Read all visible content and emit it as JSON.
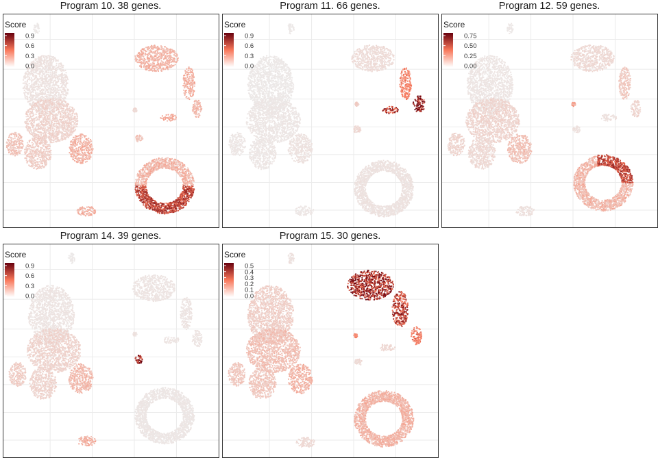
{
  "chart_data": [
    {
      "type": "scatter",
      "title": "Program 10. 38 genes.",
      "legend": {
        "title": "Score",
        "ticks": [
          "0.9",
          "0.6",
          "0.3",
          "0.0"
        ],
        "max": 1.0,
        "placement": "top-left"
      },
      "colors": {
        "low": "#ececec",
        "mid": "#f8775a",
        "high": "#67000d"
      },
      "xlim": [
        0,
        8
      ],
      "ylim": [
        0,
        7.2
      ],
      "grid": true,
      "clusters": [
        {
          "name": "top-small",
          "x": 1.25,
          "y": 6.7,
          "rx": 0.12,
          "ry": 0.18,
          "score": 0.02
        },
        {
          "name": "main-upper",
          "x": 1.6,
          "y": 4.8,
          "rx": 0.85,
          "ry": 1.0,
          "score": 0.05
        },
        {
          "name": "main-mid",
          "x": 1.8,
          "y": 3.6,
          "rx": 1.0,
          "ry": 0.75,
          "score": 0.12
        },
        {
          "name": "left-arm",
          "x": 0.45,
          "y": 2.8,
          "rx": 0.32,
          "ry": 0.4,
          "score": 0.2
        },
        {
          "name": "lower-left",
          "x": 1.3,
          "y": 2.5,
          "rx": 0.5,
          "ry": 0.55,
          "score": 0.15
        },
        {
          "name": "lower-right",
          "x": 2.9,
          "y": 2.65,
          "rx": 0.45,
          "ry": 0.5,
          "score": 0.28
        },
        {
          "name": "tr-blob",
          "x": 5.7,
          "y": 5.7,
          "rx": 0.8,
          "ry": 0.45,
          "score": 0.28
        },
        {
          "name": "tr-stem",
          "x": 6.9,
          "y": 4.85,
          "rx": 0.22,
          "ry": 0.55,
          "score": 0.3
        },
        {
          "name": "tr-tip",
          "x": 7.2,
          "y": 4.0,
          "rx": 0.18,
          "ry": 0.3,
          "score": 0.25
        },
        {
          "name": "mid-tiny",
          "x": 4.9,
          "y": 3.95,
          "rx": 0.07,
          "ry": 0.07,
          "score": 0.1
        },
        {
          "name": "mid-small",
          "x": 6.15,
          "y": 3.7,
          "rx": 0.3,
          "ry": 0.12,
          "score": 0.3
        },
        {
          "name": "left-small",
          "x": 5.05,
          "y": 3.0,
          "rx": 0.14,
          "ry": 0.12,
          "score": 0.2
        },
        {
          "name": "ring",
          "x": 6.0,
          "y": 1.4,
          "rx": 1.1,
          "ry": 0.95,
          "score": 0.75,
          "ring": true,
          "hot_side": "bottom"
        },
        {
          "name": "bottom-small",
          "x": 3.1,
          "y": 0.55,
          "rx": 0.35,
          "ry": 0.17,
          "score": 0.3
        }
      ]
    },
    {
      "type": "scatter",
      "title": "Program 11. 66 genes.",
      "legend": {
        "title": "Score",
        "ticks": [
          "0.9",
          "0.6",
          "0.3",
          "0.0"
        ],
        "max": 1.0,
        "placement": "top-left"
      },
      "colors": {
        "low": "#ececec",
        "mid": "#f8775a",
        "high": "#67000d"
      },
      "xlim": [
        0,
        8
      ],
      "ylim": [
        0,
        7.2
      ],
      "grid": true,
      "clusters": [
        {
          "name": "top-small",
          "x": 2.55,
          "y": 6.7,
          "rx": 0.12,
          "ry": 0.18,
          "score": 0.02
        },
        {
          "name": "main-upper",
          "x": 1.8,
          "y": 4.8,
          "rx": 0.85,
          "ry": 1.0,
          "score": 0.02
        },
        {
          "name": "main-mid",
          "x": 1.9,
          "y": 3.6,
          "rx": 1.0,
          "ry": 0.75,
          "score": 0.03
        },
        {
          "name": "left-arm",
          "x": 0.55,
          "y": 2.8,
          "rx": 0.32,
          "ry": 0.4,
          "score": 0.03
        },
        {
          "name": "lower-left",
          "x": 1.5,
          "y": 2.5,
          "rx": 0.5,
          "ry": 0.55,
          "score": 0.03
        },
        {
          "name": "lower-right",
          "x": 2.9,
          "y": 2.65,
          "rx": 0.45,
          "ry": 0.5,
          "score": 0.05
        },
        {
          "name": "tr-blob",
          "x": 5.6,
          "y": 5.7,
          "rx": 0.8,
          "ry": 0.45,
          "score": 0.08
        },
        {
          "name": "tr-stem",
          "x": 6.8,
          "y": 4.85,
          "rx": 0.22,
          "ry": 0.55,
          "score": 0.5
        },
        {
          "name": "tr-tip",
          "x": 7.3,
          "y": 4.15,
          "rx": 0.22,
          "ry": 0.28,
          "score": 0.95
        },
        {
          "name": "mid-tiny",
          "x": 5.0,
          "y": 4.15,
          "rx": 0.07,
          "ry": 0.07,
          "score": 0.15
        },
        {
          "name": "mid-small",
          "x": 6.25,
          "y": 3.95,
          "rx": 0.3,
          "ry": 0.12,
          "score": 0.85
        },
        {
          "name": "left-small",
          "x": 5.0,
          "y": 3.3,
          "rx": 0.14,
          "ry": 0.12,
          "score": 0.1
        },
        {
          "name": "ring",
          "x": 6.0,
          "y": 1.3,
          "rx": 1.1,
          "ry": 0.95,
          "score": 0.05,
          "ring": true
        },
        {
          "name": "bottom-small",
          "x": 3.05,
          "y": 0.55,
          "rx": 0.35,
          "ry": 0.17,
          "score": 0.03
        }
      ]
    },
    {
      "type": "scatter",
      "title": "Program 12. 59 genes.",
      "legend": {
        "title": "Score",
        "ticks": [
          "0.75",
          "0.50",
          "0.25",
          "0.00"
        ],
        "max": 0.85,
        "placement": "top-left"
      },
      "colors": {
        "low": "#ececec",
        "mid": "#f8775a",
        "high": "#67000d"
      },
      "xlim": [
        0,
        8
      ],
      "ylim": [
        0,
        7.2
      ],
      "grid": true,
      "clusters": [
        {
          "name": "top-small",
          "x": 2.55,
          "y": 6.7,
          "rx": 0.12,
          "ry": 0.18,
          "score": 0.02
        },
        {
          "name": "main-upper",
          "x": 1.8,
          "y": 4.8,
          "rx": 0.85,
          "ry": 1.0,
          "score": 0.03
        },
        {
          "name": "main-mid",
          "x": 1.9,
          "y": 3.6,
          "rx": 1.0,
          "ry": 0.75,
          "score": 0.1
        },
        {
          "name": "left-arm",
          "x": 0.55,
          "y": 2.8,
          "rx": 0.32,
          "ry": 0.4,
          "score": 0.1
        },
        {
          "name": "lower-left",
          "x": 1.5,
          "y": 2.5,
          "rx": 0.5,
          "ry": 0.55,
          "score": 0.08
        },
        {
          "name": "lower-right",
          "x": 2.9,
          "y": 2.65,
          "rx": 0.45,
          "ry": 0.5,
          "score": 0.18
        },
        {
          "name": "tr-blob",
          "x": 5.6,
          "y": 5.7,
          "rx": 0.8,
          "ry": 0.45,
          "score": 0.08
        },
        {
          "name": "tr-stem",
          "x": 6.8,
          "y": 4.85,
          "rx": 0.22,
          "ry": 0.55,
          "score": 0.15
        },
        {
          "name": "tr-tip",
          "x": 7.2,
          "y": 4.0,
          "rx": 0.18,
          "ry": 0.3,
          "score": 0.1
        },
        {
          "name": "mid-tiny",
          "x": 4.9,
          "y": 4.15,
          "rx": 0.07,
          "ry": 0.07,
          "score": 0.3
        },
        {
          "name": "mid-small",
          "x": 6.2,
          "y": 3.7,
          "rx": 0.3,
          "ry": 0.12,
          "score": 0.05
        },
        {
          "name": "left-small",
          "x": 5.0,
          "y": 3.3,
          "rx": 0.14,
          "ry": 0.12,
          "score": 0.05
        },
        {
          "name": "ring",
          "x": 6.0,
          "y": 1.5,
          "rx": 1.1,
          "ry": 0.95,
          "score": 0.55,
          "ring": true,
          "hot_side": "top-right"
        },
        {
          "name": "bottom-small",
          "x": 3.1,
          "y": 0.55,
          "rx": 0.35,
          "ry": 0.17,
          "score": 0.05
        }
      ]
    },
    {
      "type": "scatter",
      "title": "Program 14. 39 genes.",
      "legend": {
        "title": "Score",
        "ticks": [
          "0.9",
          "0.6",
          "0.3",
          "0.0"
        ],
        "max": 1.0,
        "placement": "top-left"
      },
      "colors": {
        "low": "#ececec",
        "mid": "#f8775a",
        "high": "#67000d"
      },
      "xlim": [
        0,
        8
      ],
      "ylim": [
        0,
        7.2
      ],
      "grid": true,
      "clusters": [
        {
          "name": "top-small",
          "x": 2.55,
          "y": 6.7,
          "rx": 0.12,
          "ry": 0.18,
          "score": 0.02
        },
        {
          "name": "main-upper",
          "x": 1.8,
          "y": 4.8,
          "rx": 0.85,
          "ry": 1.0,
          "score": 0.04
        },
        {
          "name": "main-mid",
          "x": 1.9,
          "y": 3.6,
          "rx": 1.0,
          "ry": 0.75,
          "score": 0.12
        },
        {
          "name": "left-arm",
          "x": 0.55,
          "y": 2.8,
          "rx": 0.32,
          "ry": 0.4,
          "score": 0.15
        },
        {
          "name": "lower-left",
          "x": 1.5,
          "y": 2.5,
          "rx": 0.5,
          "ry": 0.55,
          "score": 0.12
        },
        {
          "name": "lower-right",
          "x": 2.9,
          "y": 2.65,
          "rx": 0.45,
          "ry": 0.5,
          "score": 0.25
        },
        {
          "name": "tr-blob",
          "x": 5.6,
          "y": 5.7,
          "rx": 0.8,
          "ry": 0.45,
          "score": 0.04
        },
        {
          "name": "tr-stem",
          "x": 6.8,
          "y": 4.85,
          "rx": 0.22,
          "ry": 0.55,
          "score": 0.04
        },
        {
          "name": "tr-tip",
          "x": 7.2,
          "y": 4.0,
          "rx": 0.18,
          "ry": 0.3,
          "score": 0.04
        },
        {
          "name": "mid-tiny",
          "x": 4.9,
          "y": 4.15,
          "rx": 0.07,
          "ry": 0.07,
          "score": 0.05
        },
        {
          "name": "mid-small",
          "x": 6.25,
          "y": 3.95,
          "rx": 0.3,
          "ry": 0.12,
          "score": 0.04
        },
        {
          "name": "left-small",
          "x": 5.05,
          "y": 3.3,
          "rx": 0.16,
          "ry": 0.14,
          "score": 0.95
        },
        {
          "name": "ring",
          "x": 6.0,
          "y": 1.4,
          "rx": 1.1,
          "ry": 0.95,
          "score": 0.03,
          "ring": true
        },
        {
          "name": "bottom-small",
          "x": 3.1,
          "y": 0.55,
          "rx": 0.35,
          "ry": 0.17,
          "score": 0.3
        }
      ]
    },
    {
      "type": "scatter",
      "title": "Program 15. 30 genes.",
      "legend": {
        "title": "Score",
        "ticks": [
          "0.5",
          "0.4",
          "0.3",
          "0.2",
          "0.1",
          "0.0"
        ],
        "max": 0.55,
        "placement": "top-left"
      },
      "colors": {
        "low": "#ececec",
        "mid": "#f8775a",
        "high": "#67000d"
      },
      "xlim": [
        0,
        8
      ],
      "ylim": [
        0,
        7.2
      ],
      "grid": true,
      "clusters": [
        {
          "name": "top-small",
          "x": 2.55,
          "y": 6.7,
          "rx": 0.12,
          "ry": 0.18,
          "score": 0.03
        },
        {
          "name": "main-upper",
          "x": 1.8,
          "y": 4.8,
          "rx": 0.85,
          "ry": 1.0,
          "score": 0.08
        },
        {
          "name": "main-mid",
          "x": 1.9,
          "y": 3.6,
          "rx": 1.0,
          "ry": 0.75,
          "score": 0.12
        },
        {
          "name": "left-arm",
          "x": 0.55,
          "y": 2.8,
          "rx": 0.32,
          "ry": 0.4,
          "score": 0.1
        },
        {
          "name": "lower-left",
          "x": 1.5,
          "y": 2.5,
          "rx": 0.5,
          "ry": 0.55,
          "score": 0.1
        },
        {
          "name": "lower-right",
          "x": 2.9,
          "y": 2.65,
          "rx": 0.45,
          "ry": 0.5,
          "score": 0.15
        },
        {
          "name": "tr-blob",
          "x": 5.5,
          "y": 5.8,
          "rx": 0.85,
          "ry": 0.5,
          "score": 0.5
        },
        {
          "name": "tr-stem",
          "x": 6.6,
          "y": 5.0,
          "rx": 0.3,
          "ry": 0.6,
          "score": 0.45
        },
        {
          "name": "tr-tip",
          "x": 7.2,
          "y": 4.1,
          "rx": 0.2,
          "ry": 0.3,
          "score": 0.3
        },
        {
          "name": "mid-tiny",
          "x": 4.95,
          "y": 4.1,
          "rx": 0.07,
          "ry": 0.07,
          "score": 0.25
        },
        {
          "name": "mid-small",
          "x": 6.1,
          "y": 3.7,
          "rx": 0.3,
          "ry": 0.12,
          "score": 0.06
        },
        {
          "name": "left-small",
          "x": 5.05,
          "y": 3.2,
          "rx": 0.14,
          "ry": 0.12,
          "score": 0.05
        },
        {
          "name": "ring",
          "x": 6.0,
          "y": 1.3,
          "rx": 1.1,
          "ry": 0.95,
          "score": 0.15,
          "ring": true
        },
        {
          "name": "bottom-small",
          "x": 3.1,
          "y": 0.5,
          "rx": 0.35,
          "ry": 0.17,
          "score": 0.05
        }
      ]
    }
  ]
}
